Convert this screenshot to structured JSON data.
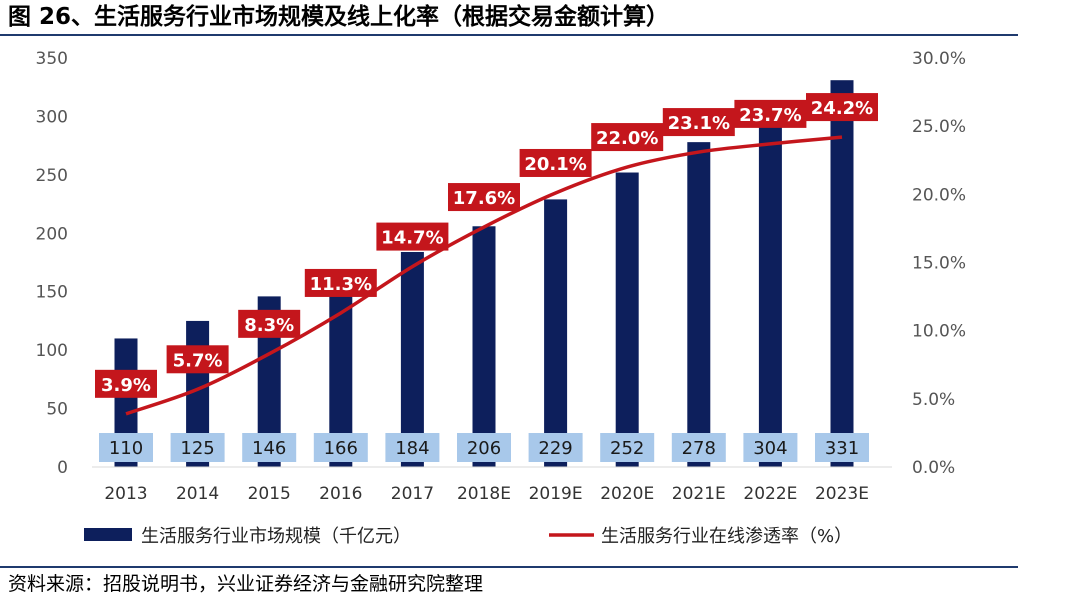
{
  "header": {
    "title": "图 26、生活服务行业市场规模及线上化率（根据交易金额计算）"
  },
  "footer": {
    "source": "资料来源：招股说明书，兴业证券经济与金融研究院整理"
  },
  "colors": {
    "bar": "#0d1f5c",
    "line": "#c4161c",
    "label_box": "#a8c8ea",
    "pct_box": "#c4161c",
    "rule": "#1f3a6e"
  },
  "chart_data": {
    "type": "bar",
    "title": "生活服务行业市场规模及线上化率",
    "categories": [
      "2013",
      "2014",
      "2015",
      "2016",
      "2017",
      "2018E",
      "2019E",
      "2020E",
      "2021E",
      "2022E",
      "2023E"
    ],
    "series": [
      {
        "name": "生活服务行业市场规模（千亿元）",
        "type": "bar",
        "axis": "left",
        "values": [
          110,
          125,
          146,
          166,
          184,
          206,
          229,
          252,
          278,
          304,
          331
        ],
        "labels": [
          "110",
          "125",
          "146",
          "166",
          "184",
          "206",
          "229",
          "252",
          "278",
          "304",
          "331"
        ]
      },
      {
        "name": "生活服务行业在线渗透率（%）",
        "type": "line",
        "axis": "right",
        "values": [
          3.9,
          5.7,
          8.3,
          11.3,
          14.7,
          17.6,
          20.1,
          22.0,
          23.1,
          23.7,
          24.2
        ],
        "labels": [
          "3.9%",
          "5.7%",
          "8.3%",
          "11.3%",
          "14.7%",
          "17.6%",
          "20.1%",
          "22.0%",
          "23.1%",
          "23.7%",
          "24.2%"
        ]
      }
    ],
    "y_left": {
      "min": 0,
      "max": 350,
      "ticks": [
        "0",
        "50",
        "100",
        "150",
        "200",
        "250",
        "300",
        "350"
      ]
    },
    "y_right": {
      "min": 0,
      "max": 30,
      "ticks": [
        "0.0%",
        "5.0%",
        "10.0%",
        "15.0%",
        "20.0%",
        "25.0%",
        "30.0%"
      ]
    },
    "legend": {
      "position": "bottom",
      "bar_label": "生活服务行业市场规模（千亿元）",
      "line_label": "生活服务行业在线渗透率（%）"
    },
    "grid": false
  }
}
